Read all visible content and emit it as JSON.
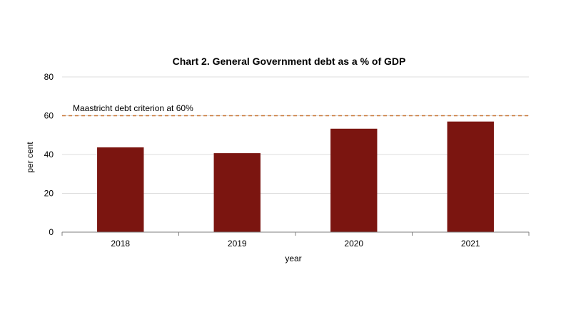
{
  "chart_data": {
    "type": "bar",
    "title": "Chart 2.  General Government debt as a % of GDP",
    "xlabel": "year",
    "ylabel": "per cent",
    "categories": [
      "2018",
      "2019",
      "2020",
      "2021"
    ],
    "values": [
      43.7,
      40.7,
      53.3,
      57.0
    ],
    "ylim": [
      0,
      80
    ],
    "yticks": [
      "0",
      "20",
      "40",
      "60",
      "80"
    ],
    "grid": true,
    "legend": "none",
    "bar_color": "#7b1510",
    "reference_line": {
      "label": "Maastricht debt criterion at 60%",
      "value": 60,
      "color": "#c87533",
      "style": "dashed"
    }
  }
}
